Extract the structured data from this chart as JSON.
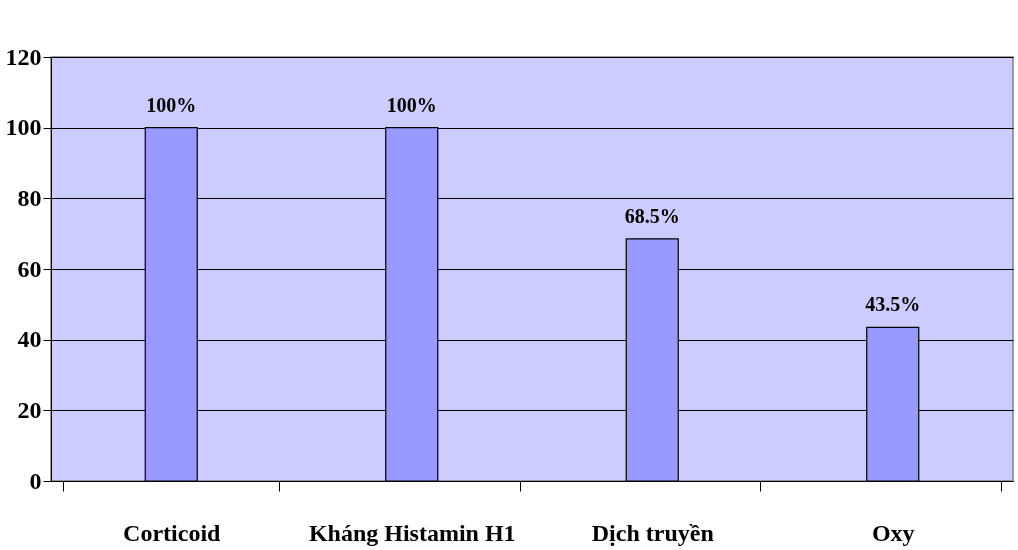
{
  "chart_data": {
    "type": "bar",
    "categories": [
      "Corticoid",
      "Kháng Histamin H1",
      "Dịch truyền",
      "Oxy"
    ],
    "values": [
      100,
      100,
      68.5,
      43.5
    ],
    "value_labels": [
      "100%",
      "100%",
      "68.5%",
      "43.5%"
    ],
    "color": "#9999ff",
    "ylim": [
      0,
      120
    ],
    "yticks": [
      0,
      20,
      40,
      60,
      80,
      100,
      120
    ],
    "grid": "y"
  }
}
